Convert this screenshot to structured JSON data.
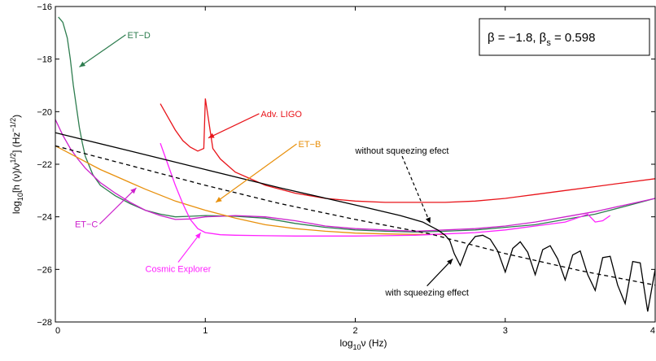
{
  "chart_data": {
    "type": "line",
    "title": "",
    "legend_box": {
      "text_main": "β = −1.8, β",
      "subscript": "s",
      "text_tail": " = 0.598",
      "placement": "top-right"
    },
    "xlabel": {
      "pre": "log",
      "sub": "10",
      "post": "ν (Hz)"
    },
    "ylabel": {
      "pre": "log",
      "sub": "10",
      "mid": "[h (ν)/ν",
      "sup1": "1/2",
      "mid2": "] (Hz",
      "sup2": "−1/2",
      "post": ")"
    },
    "xlim": [
      0,
      4
    ],
    "ylim": [
      -28,
      -16
    ],
    "x_ticks": [
      0,
      1,
      2,
      3,
      4
    ],
    "x_tick_labels": [
      "0",
      "1",
      "2",
      "3",
      "4"
    ],
    "y_ticks": [
      -28,
      -26,
      -24,
      -22,
      -20,
      -18,
      -16
    ],
    "y_tick_labels": [
      "−28",
      "−26",
      "−24",
      "−22",
      "−20",
      "−18",
      "−16"
    ],
    "grid": false,
    "series": [
      {
        "name": "ET−D",
        "color": "#2e7d4f",
        "x": [
          0.02,
          0.05,
          0.08,
          0.1,
          0.12,
          0.14,
          0.16,
          0.18,
          0.2,
          0.25,
          0.3,
          0.4,
          0.5,
          0.6,
          0.7,
          0.8,
          0.9,
          1.0,
          1.2,
          1.4,
          1.6,
          1.8,
          2.0,
          2.2,
          2.4,
          2.6,
          2.8,
          3.0,
          3.2,
          3.4,
          3.6,
          3.8,
          4.0
        ],
        "y": [
          -16.4,
          -16.6,
          -17.2,
          -18.0,
          -19.0,
          -19.8,
          -20.6,
          -21.2,
          -21.7,
          -22.4,
          -22.8,
          -23.2,
          -23.5,
          -23.75,
          -23.9,
          -24.0,
          -23.98,
          -23.95,
          -23.98,
          -24.05,
          -24.25,
          -24.4,
          -24.5,
          -24.55,
          -24.58,
          -24.55,
          -24.5,
          -24.4,
          -24.3,
          -24.1,
          -23.9,
          -23.6,
          -23.3
        ]
      },
      {
        "name": "ET−C",
        "color": "#cc22cc",
        "x": [
          0.0,
          0.05,
          0.1,
          0.15,
          0.2,
          0.3,
          0.4,
          0.5,
          0.6,
          0.7,
          0.8,
          0.9,
          1.0,
          1.1,
          1.2,
          1.4,
          1.6,
          1.8,
          2.0,
          2.2,
          2.4,
          2.6,
          2.8,
          3.0,
          3.2,
          3.4,
          3.6,
          3.8,
          4.0
        ],
        "y": [
          -20.3,
          -20.9,
          -21.4,
          -21.8,
          -22.15,
          -22.7,
          -23.1,
          -23.45,
          -23.75,
          -23.95,
          -24.1,
          -24.08,
          -24.0,
          -23.98,
          -23.95,
          -24.0,
          -24.15,
          -24.35,
          -24.45,
          -24.5,
          -24.55,
          -24.5,
          -24.45,
          -24.35,
          -24.2,
          -24.0,
          -23.8,
          -23.55,
          -23.3
        ]
      },
      {
        "name": "ET−B",
        "color": "#e8900c",
        "x": [
          0.0,
          0.1,
          0.2,
          0.3,
          0.4,
          0.5,
          0.6,
          0.8,
          1.0,
          1.2,
          1.4,
          1.6,
          1.8,
          2.0,
          2.2,
          2.4,
          2.6
        ],
        "y": [
          -21.3,
          -21.6,
          -21.9,
          -22.2,
          -22.45,
          -22.7,
          -22.95,
          -23.4,
          -23.75,
          -24.05,
          -24.3,
          -24.45,
          -24.55,
          -24.62,
          -24.65,
          -24.67,
          -24.67
        ]
      },
      {
        "name": "Adv. LIGO",
        "color": "#e8141a",
        "x": [
          0.7,
          0.75,
          0.8,
          0.85,
          0.9,
          0.95,
          0.99,
          1.0,
          1.05,
          1.1,
          1.2,
          1.4,
          1.6,
          1.8,
          2.0,
          2.2,
          2.4,
          2.6,
          2.8,
          3.0,
          3.2,
          3.4,
          3.6,
          3.8,
          4.0
        ],
        "y": [
          -19.7,
          -20.2,
          -20.7,
          -21.1,
          -21.35,
          -21.5,
          -21.4,
          -19.5,
          -21.4,
          -21.8,
          -22.3,
          -22.8,
          -23.1,
          -23.3,
          -23.4,
          -23.45,
          -23.45,
          -23.45,
          -23.4,
          -23.3,
          -23.15,
          -23.0,
          -22.85,
          -22.7,
          -22.55
        ]
      },
      {
        "name": "Cosmic Explorer",
        "color": "#ff22ff",
        "x": [
          0.7,
          0.75,
          0.8,
          0.85,
          0.9,
          0.95,
          1.0,
          1.1,
          1.2,
          1.4,
          1.6,
          1.8,
          2.0,
          2.2,
          2.4,
          2.6,
          2.8,
          3.0,
          3.2,
          3.4,
          3.5,
          3.55,
          3.6,
          3.65,
          3.7
        ],
        "y": [
          -21.2,
          -22.0,
          -22.8,
          -23.5,
          -24.1,
          -24.45,
          -24.6,
          -24.68,
          -24.7,
          -24.72,
          -24.73,
          -24.73,
          -24.73,
          -24.72,
          -24.7,
          -24.65,
          -24.6,
          -24.5,
          -24.35,
          -24.2,
          -24.0,
          -23.9,
          -24.2,
          -24.15,
          -23.95
        ]
      },
      {
        "name": "without squeezing efect",
        "color": "#000000",
        "x": [
          0.0,
          0.5,
          1.0,
          1.5,
          2.0,
          2.3,
          2.45,
          2.55,
          2.6,
          2.63,
          2.66,
          2.7,
          2.75,
          2.8,
          2.85,
          2.9,
          2.95,
          3.0,
          3.05,
          3.1,
          3.15,
          3.2,
          3.25,
          3.3,
          3.35,
          3.4,
          3.45,
          3.5,
          3.55,
          3.6,
          3.65,
          3.7,
          3.75,
          3.8,
          3.85,
          3.9,
          3.95,
          4.0
        ],
        "y": [
          -20.8,
          -21.5,
          -22.2,
          -22.9,
          -23.55,
          -23.95,
          -24.2,
          -24.5,
          -24.7,
          -24.9,
          -25.4,
          -25.85,
          -25.1,
          -24.75,
          -24.7,
          -24.85,
          -25.3,
          -26.1,
          -25.2,
          -24.95,
          -25.35,
          -26.2,
          -25.25,
          -25.1,
          -25.6,
          -26.4,
          -25.45,
          -25.3,
          -26.2,
          -26.8,
          -25.55,
          -25.5,
          -26.6,
          -27.3,
          -25.7,
          -25.75,
          -27.6,
          -26.0
        ]
      },
      {
        "name": "with squeezing effect",
        "color": "#000000",
        "dash": true,
        "x": [
          0.0,
          0.5,
          1.0,
          1.5,
          2.0,
          2.5,
          3.0,
          3.5,
          4.0
        ],
        "y": [
          -21.3,
          -22.05,
          -22.8,
          -23.5,
          -24.1,
          -24.65,
          -25.4,
          -26.05,
          -26.6
        ]
      }
    ],
    "annotations": [
      {
        "text": "ET−D",
        "color": "#2e7d4f",
        "x": 0.48,
        "y": -17.2,
        "ax": 0.16,
        "ay": -18.3
      },
      {
        "text": "Adv. LIGO",
        "color": "#e8141a",
        "x": 1.37,
        "y": -20.2,
        "ax": 1.02,
        "ay": -21.0
      },
      {
        "text": "ET−B",
        "color": "#e8900c",
        "x": 1.62,
        "y": -21.35,
        "ax": 1.07,
        "ay": -23.45
      },
      {
        "text": "without squeezing efect",
        "color": "#000000",
        "x": 2.0,
        "y": -21.6,
        "ax": 2.5,
        "ay": -24.25,
        "dashed_arrow": true
      },
      {
        "text": "ET−C",
        "color": "#cc22cc",
        "x": 0.13,
        "y": -24.4,
        "ax": 0.54,
        "ay": -22.9
      },
      {
        "text": "Cosmic Explorer",
        "color": "#ff22ff",
        "x": 0.6,
        "y": -26.1,
        "ax": 0.97,
        "ay": -24.6
      },
      {
        "text": "with squeezing effect",
        "color": "#000000",
        "x": 2.2,
        "y": -27.0,
        "ax": 2.65,
        "ay": -25.6
      }
    ]
  }
}
